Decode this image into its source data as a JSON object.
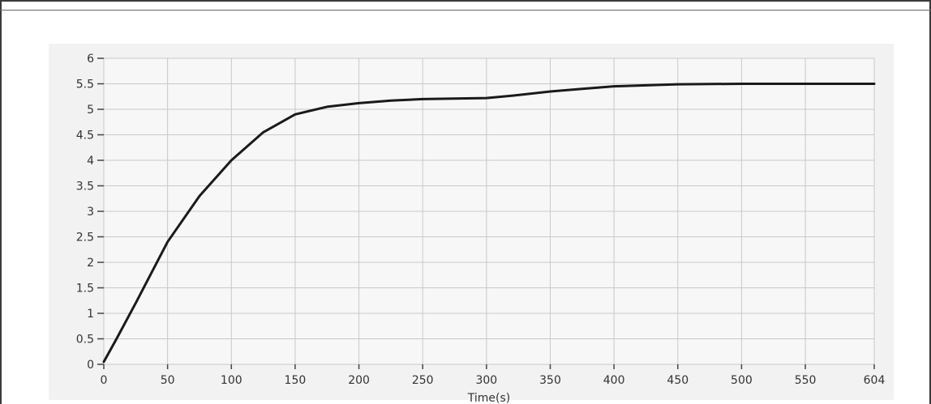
{
  "chart_data": {
    "type": "line",
    "title": "",
    "xlabel": "Time(s)",
    "ylabel": "",
    "xlim": [
      0,
      604
    ],
    "ylim": [
      0,
      6
    ],
    "grid": true,
    "colors": {
      "plot_bg": "#f7f7f7",
      "grid": "#c8c8c8",
      "line": "#1a1a1a",
      "axis": "#777777"
    },
    "x_ticks": [
      {
        "value": 0,
        "label": "0"
      },
      {
        "value": 50,
        "label": "50"
      },
      {
        "value": 100,
        "label": "100"
      },
      {
        "value": 150,
        "label": "150"
      },
      {
        "value": 200,
        "label": "200"
      },
      {
        "value": 250,
        "label": "250"
      },
      {
        "value": 300,
        "label": "300"
      },
      {
        "value": 350,
        "label": "350"
      },
      {
        "value": 400,
        "label": "400"
      },
      {
        "value": 450,
        "label": "450"
      },
      {
        "value": 500,
        "label": "500"
      },
      {
        "value": 550,
        "label": "550"
      },
      {
        "value": 604,
        "label": "604"
      }
    ],
    "y_ticks": [
      {
        "value": 0,
        "label": "0"
      },
      {
        "value": 0.5,
        "label": "0.5"
      },
      {
        "value": 1,
        "label": "1"
      },
      {
        "value": 1.5,
        "label": "1.5"
      },
      {
        "value": 2,
        "label": "2"
      },
      {
        "value": 2.5,
        "label": "2.5"
      },
      {
        "value": 3,
        "label": "3"
      },
      {
        "value": 3.5,
        "label": "3.5"
      },
      {
        "value": 4,
        "label": "4"
      },
      {
        "value": 4.5,
        "label": "4.5"
      },
      {
        "value": 5,
        "label": "5"
      },
      {
        "value": 5.5,
        "label": "5.5"
      },
      {
        "value": 6,
        "label": "6"
      }
    ],
    "series": [
      {
        "x": [
          0,
          10,
          25,
          50,
          75,
          100,
          125,
          150,
          175,
          200,
          225,
          250,
          275,
          300,
          325,
          350,
          375,
          400,
          425,
          450,
          500,
          550,
          604
        ],
        "y": [
          0.05,
          0.5,
          1.2,
          2.4,
          3.3,
          4.0,
          4.55,
          4.9,
          5.05,
          5.12,
          5.17,
          5.2,
          5.21,
          5.22,
          5.28,
          5.35,
          5.4,
          5.45,
          5.47,
          5.49,
          5.5,
          5.5,
          5.5
        ]
      }
    ]
  }
}
